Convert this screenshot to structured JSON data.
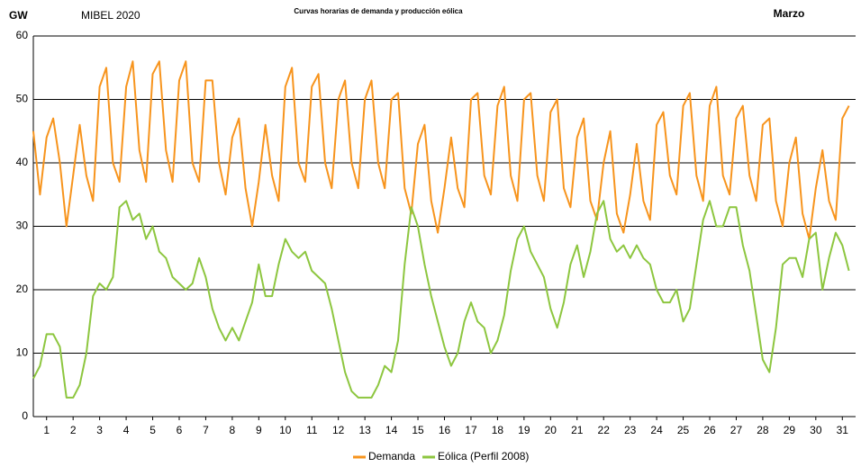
{
  "chart_data": {
    "type": "line",
    "title": "Curvas horarias de demanda y producción eólica",
    "subtitle": "MIBEL 2020",
    "period": "Marzo",
    "y_label": "GW",
    "x": [
      0,
      0.25,
      0.5,
      0.75,
      1,
      1.25,
      1.5,
      1.75,
      2,
      2.25,
      2.5,
      2.75,
      3,
      3.25,
      3.5,
      3.75,
      4,
      4.25,
      4.5,
      4.75,
      5,
      5.25,
      5.5,
      5.75,
      6,
      6.25,
      6.5,
      6.75,
      7,
      7.25,
      7.5,
      7.75,
      8,
      8.25,
      8.5,
      8.75,
      9,
      9.25,
      9.5,
      9.75,
      10,
      10.25,
      10.5,
      10.75,
      11,
      11.25,
      11.5,
      11.75,
      12,
      12.25,
      12.5,
      12.75,
      13,
      13.25,
      13.5,
      13.75,
      14,
      14.25,
      14.5,
      14.75,
      15,
      15.25,
      15.5,
      15.75,
      16,
      16.25,
      16.5,
      16.75,
      17,
      17.25,
      17.5,
      17.75,
      18,
      18.25,
      18.5,
      18.75,
      19,
      19.25,
      19.5,
      19.75,
      20,
      20.25,
      20.5,
      20.75,
      21,
      21.25,
      21.5,
      21.75,
      22,
      22.25,
      22.5,
      22.75,
      23,
      23.25,
      23.5,
      23.75,
      24,
      24.25,
      24.5,
      24.75,
      25,
      25.25,
      25.5,
      25.75,
      26,
      26.25,
      26.5,
      26.75,
      27,
      27.25,
      27.5,
      27.75,
      28,
      28.25,
      28.5,
      28.75,
      29,
      29.25,
      29.5,
      29.75,
      30,
      30.25,
      30.5,
      30.75
    ],
    "series": [
      {
        "name": "Demanda",
        "color": "#f7941d",
        "values": [
          45,
          35,
          44,
          47,
          40,
          30,
          38,
          46,
          38,
          34,
          52,
          55,
          40,
          37,
          52,
          56,
          42,
          37,
          54,
          56,
          42,
          37,
          53,
          56,
          40,
          37,
          53,
          53,
          40,
          35,
          44,
          47,
          36,
          30,
          37,
          46,
          38,
          34,
          52,
          55,
          40,
          37,
          52,
          54,
          40,
          36,
          50,
          53,
          40,
          36,
          50,
          53,
          40,
          36,
          50,
          51,
          36,
          32,
          43,
          46,
          34,
          29,
          36,
          44,
          36,
          33,
          50,
          51,
          38,
          35,
          49,
          52,
          38,
          34,
          50,
          51,
          38,
          34,
          48,
          50,
          36,
          33,
          44,
          47,
          34,
          31,
          40,
          45,
          32,
          29,
          35,
          43,
          34,
          31,
          46,
          48,
          38,
          35,
          49,
          51,
          38,
          34,
          49,
          52,
          38,
          35,
          47,
          49,
          38,
          34,
          46,
          47,
          34,
          30,
          40,
          44,
          32,
          28,
          36,
          42,
          34,
          31,
          47,
          49
        ]
      },
      {
        "name": "Eólica (Perfil 2008)",
        "color": "#8dc63f",
        "values": [
          6,
          8,
          13,
          13,
          11,
          3,
          3,
          5,
          10,
          19,
          21,
          20,
          22,
          33,
          34,
          31,
          32,
          28,
          30,
          26,
          25,
          22,
          21,
          20,
          21,
          25,
          22,
          17,
          14,
          12,
          14,
          12,
          15,
          18,
          24,
          19,
          19,
          24,
          28,
          26,
          25,
          26,
          23,
          22,
          21,
          17,
          12,
          7,
          4,
          3,
          3,
          3,
          5,
          8,
          7,
          12,
          24,
          33,
          30,
          24,
          19,
          15,
          11,
          8,
          10,
          15,
          18,
          15,
          14,
          10,
          12,
          16,
          23,
          28,
          30,
          26,
          24,
          22,
          17,
          14,
          18,
          24,
          27,
          22,
          26,
          32,
          34,
          28,
          26,
          27,
          25,
          27,
          25,
          24,
          20,
          18,
          18,
          20,
          15,
          17,
          24,
          31,
          34,
          30,
          30,
          33,
          33,
          27,
          23,
          16,
          9,
          7,
          14,
          24,
          25,
          25,
          22,
          28,
          29,
          20,
          25,
          29,
          27,
          23
        ]
      }
    ],
    "xlim": [
      0,
      31
    ],
    "xticks": [
      {
        "value": 0.5,
        "label": "1"
      },
      {
        "value": 1.5,
        "label": "2"
      },
      {
        "value": 2.5,
        "label": "3"
      },
      {
        "value": 3.5,
        "label": "4"
      },
      {
        "value": 4.5,
        "label": "5"
      },
      {
        "value": 5.5,
        "label": "6"
      },
      {
        "value": 6.5,
        "label": "7"
      },
      {
        "value": 7.5,
        "label": "8"
      },
      {
        "value": 8.5,
        "label": "9"
      },
      {
        "value": 9.5,
        "label": "10"
      },
      {
        "value": 10.5,
        "label": "11"
      },
      {
        "value": 11.5,
        "label": "12"
      },
      {
        "value": 12.5,
        "label": "13"
      },
      {
        "value": 13.5,
        "label": "14"
      },
      {
        "value": 14.5,
        "label": "15"
      },
      {
        "value": 15.5,
        "label": "16"
      },
      {
        "value": 16.5,
        "label": "17"
      },
      {
        "value": 17.5,
        "label": "18"
      },
      {
        "value": 18.5,
        "label": "19"
      },
      {
        "value": 19.5,
        "label": "20"
      },
      {
        "value": 20.5,
        "label": "21"
      },
      {
        "value": 21.5,
        "label": "22"
      },
      {
        "value": 22.5,
        "label": "23"
      },
      {
        "value": 23.5,
        "label": "24"
      },
      {
        "value": 24.5,
        "label": "25"
      },
      {
        "value": 25.5,
        "label": "26"
      },
      {
        "value": 26.5,
        "label": "27"
      },
      {
        "value": 27.5,
        "label": "28"
      },
      {
        "value": 28.5,
        "label": "29"
      },
      {
        "value": 29.5,
        "label": "30"
      },
      {
        "value": 30.5,
        "label": "31"
      }
    ],
    "ylim": [
      0,
      60
    ],
    "yticks": [
      0,
      10,
      20,
      30,
      40,
      50,
      60
    ],
    "grid": true,
    "legend": "bottom"
  }
}
